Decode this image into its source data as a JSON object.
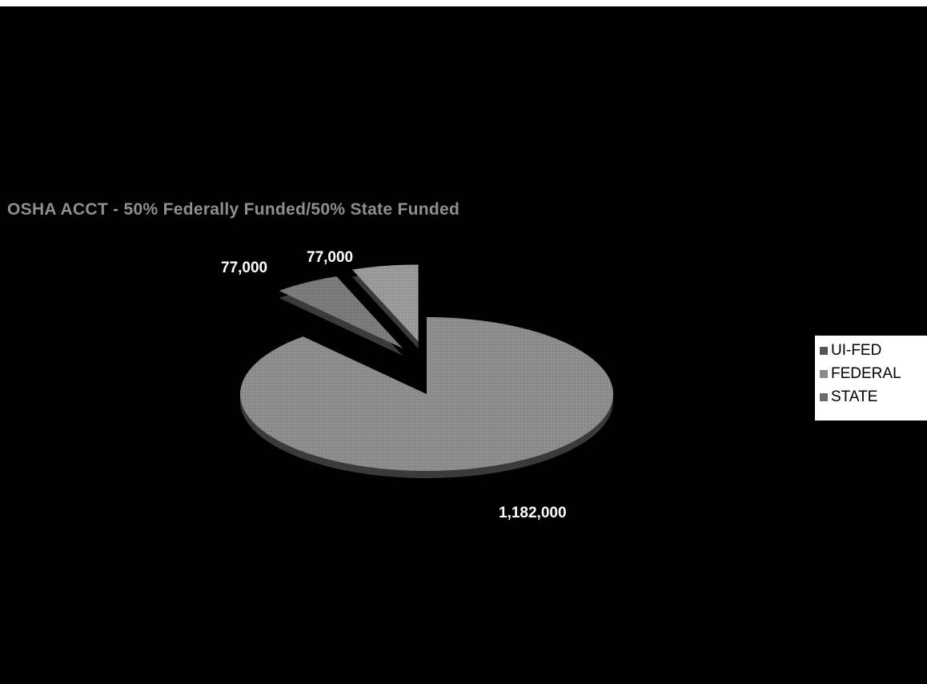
{
  "colors": {
    "background": "#000000",
    "title": "#8f8f8f",
    "data_label": "#ffffff"
  },
  "chart_data": {
    "type": "pie",
    "title": "OSHA ACCT - 50% Federally Funded/50% State Funded",
    "categories": [
      "UI-FED",
      "FEDERAL",
      "STATE"
    ],
    "values": [
      77000,
      77000,
      1182000
    ],
    "data_labels": [
      "77,000",
      "77,000",
      "1,182,000"
    ],
    "series_colors": [
      "#7a7a7a",
      "#9a9a9a",
      "#8c8c8c"
    ],
    "exploded": [
      true,
      true,
      false
    ],
    "style": "3d",
    "legend": "right"
  },
  "legend": {
    "items": [
      {
        "label": "UI-FED",
        "color": "#555555"
      },
      {
        "label": "FEDERAL",
        "color": "#8a8a8a"
      },
      {
        "label": "STATE",
        "color": "#6a6a6a"
      }
    ]
  }
}
